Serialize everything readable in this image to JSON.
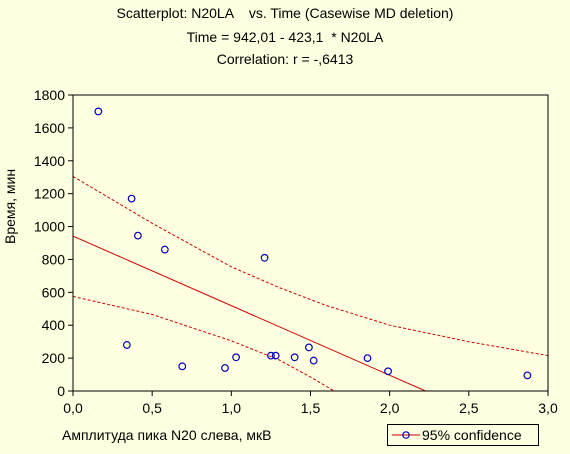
{
  "chart_data": {
    "type": "scatter",
    "title_lines": [
      "Scatterplot: N20LA    vs. Time (Casewise MD deletion)",
      "Time = 942,01 - 423,1  * N20LA",
      "Correlation: r = -,6413"
    ],
    "xlabel": "Амплитуда пика N20 слева, мкВ",
    "ylabel": "Время, мин",
    "xlim": [
      0,
      3
    ],
    "ylim": [
      0,
      1800
    ],
    "x_ticks": [
      0,
      0.5,
      1,
      1.5,
      2,
      2.5,
      3
    ],
    "x_tick_labels": [
      "0,0",
      "0,5",
      "1,0",
      "1,5",
      "2,0",
      "2,5",
      "3,0"
    ],
    "y_ticks": [
      0,
      200,
      400,
      600,
      800,
      1000,
      1200,
      1400,
      1600,
      1800
    ],
    "y_tick_labels": [
      "0",
      "200",
      "400",
      "600",
      "800",
      "1000",
      "1200",
      "1400",
      "1600",
      "1800"
    ],
    "points": [
      {
        "x": 0.16,
        "y": 1700
      },
      {
        "x": 0.34,
        "y": 280
      },
      {
        "x": 0.37,
        "y": 1170
      },
      {
        "x": 0.41,
        "y": 945
      },
      {
        "x": 0.58,
        "y": 860
      },
      {
        "x": 0.69,
        "y": 150
      },
      {
        "x": 0.96,
        "y": 140
      },
      {
        "x": 1.03,
        "y": 205
      },
      {
        "x": 1.21,
        "y": 810
      },
      {
        "x": 1.25,
        "y": 215
      },
      {
        "x": 1.28,
        "y": 215
      },
      {
        "x": 1.4,
        "y": 205
      },
      {
        "x": 1.49,
        "y": 265
      },
      {
        "x": 1.52,
        "y": 185
      },
      {
        "x": 1.86,
        "y": 200
      },
      {
        "x": 1.99,
        "y": 120
      },
      {
        "x": 2.87,
        "y": 95
      }
    ],
    "regression": {
      "intercept": 942.01,
      "slope": -423.1
    },
    "confidence_upper": [
      [
        0,
        1305
      ],
      [
        0.5,
        1020
      ],
      [
        1.0,
        755
      ],
      [
        1.3,
        630
      ],
      [
        1.6,
        520
      ],
      [
        2.0,
        400
      ],
      [
        2.5,
        300
      ],
      [
        3.0,
        215
      ]
    ],
    "confidence_lower": [
      [
        0,
        575
      ],
      [
        0.5,
        465
      ],
      [
        1.0,
        305
      ],
      [
        1.3,
        190
      ],
      [
        1.5,
        85
      ],
      [
        1.65,
        0
      ]
    ],
    "legend": {
      "label": "95% confidence",
      "position": "bottom-right"
    },
    "grid": false,
    "colors": {
      "points": "#0000c0",
      "line": "#cc0000",
      "background": "#ffffe1"
    }
  }
}
